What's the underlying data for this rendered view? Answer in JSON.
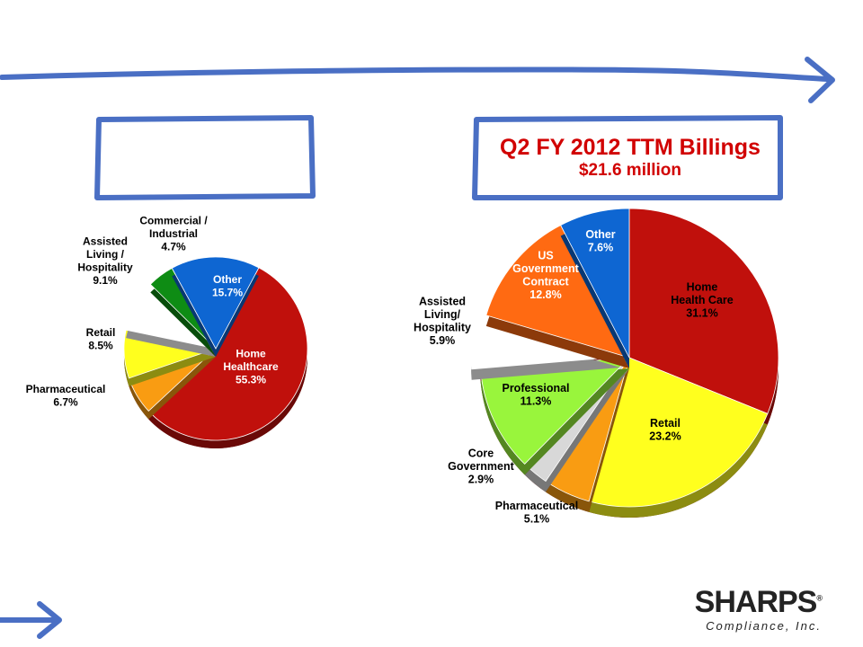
{
  "decor": {
    "color": "#4a6fc4"
  },
  "right_title": {
    "title": "Q2 FY 2012 TTM Billings",
    "subtitle": "$21.6 million"
  },
  "left_title": {
    "title": ""
  },
  "logo": {
    "name": "SHARPS",
    "reg": "®",
    "tagline": "Compliance, Inc."
  },
  "chart_data": [
    {
      "type": "pie",
      "title": "",
      "start_angle_deg": 62,
      "slices": [
        {
          "label": [
            "Home",
            "Healthcare",
            "55.3%"
          ],
          "value": 55.3,
          "color": "#c0100c"
        },
        {
          "label": [
            "Pharmaceutical",
            "6.7%"
          ],
          "value": 6.7,
          "color": "#f99c12"
        },
        {
          "label": [
            "Retail",
            "8.5%"
          ],
          "value": 8.5,
          "color": "#ffff1e"
        },
        {
          "label": [
            "Assisted",
            "Living /",
            "Hospitality",
            "9.1%"
          ],
          "value": 9.1,
          "color": "#ffffff"
        },
        {
          "label": [
            "Commercial /",
            "Industrial",
            "4.7%"
          ],
          "value": 4.7,
          "color": "#0e8c14"
        },
        {
          "label": [
            "Other",
            "15.7%"
          ],
          "value": 15.7,
          "color": "#0e66d2"
        }
      ]
    },
    {
      "type": "pie",
      "title": "Q2 FY 2012 TTM Billings",
      "subtitle": "$21.6 million",
      "start_angle_deg": 90,
      "slices": [
        {
          "label": [
            "Home",
            "Health Care",
            "31.1%"
          ],
          "value": 31.1,
          "color": "#c0100c"
        },
        {
          "label": [
            "Retail",
            "23.2%"
          ],
          "value": 23.2,
          "color": "#ffff1e"
        },
        {
          "label": [
            "Pharmaceutical",
            "5.1%"
          ],
          "value": 5.1,
          "color": "#f99c12"
        },
        {
          "label": [
            "Core",
            "Government",
            "2.9%"
          ],
          "value": 2.9,
          "color": "#d8d8d8"
        },
        {
          "label": [
            "Professional",
            "11.3%"
          ],
          "value": 11.3,
          "color": "#99f53c"
        },
        {
          "label": [
            "Assisted",
            "Living/",
            "Hospitality",
            "5.9%"
          ],
          "value": 5.9,
          "color": "#ffffff"
        },
        {
          "label": [
            "US",
            "Government",
            "Contract",
            "12.8%"
          ],
          "value": 12.8,
          "color": "#ff6a12"
        },
        {
          "label": [
            "Other",
            "7.6%"
          ],
          "value": 7.6,
          "color": "#0e66d2"
        }
      ]
    }
  ]
}
